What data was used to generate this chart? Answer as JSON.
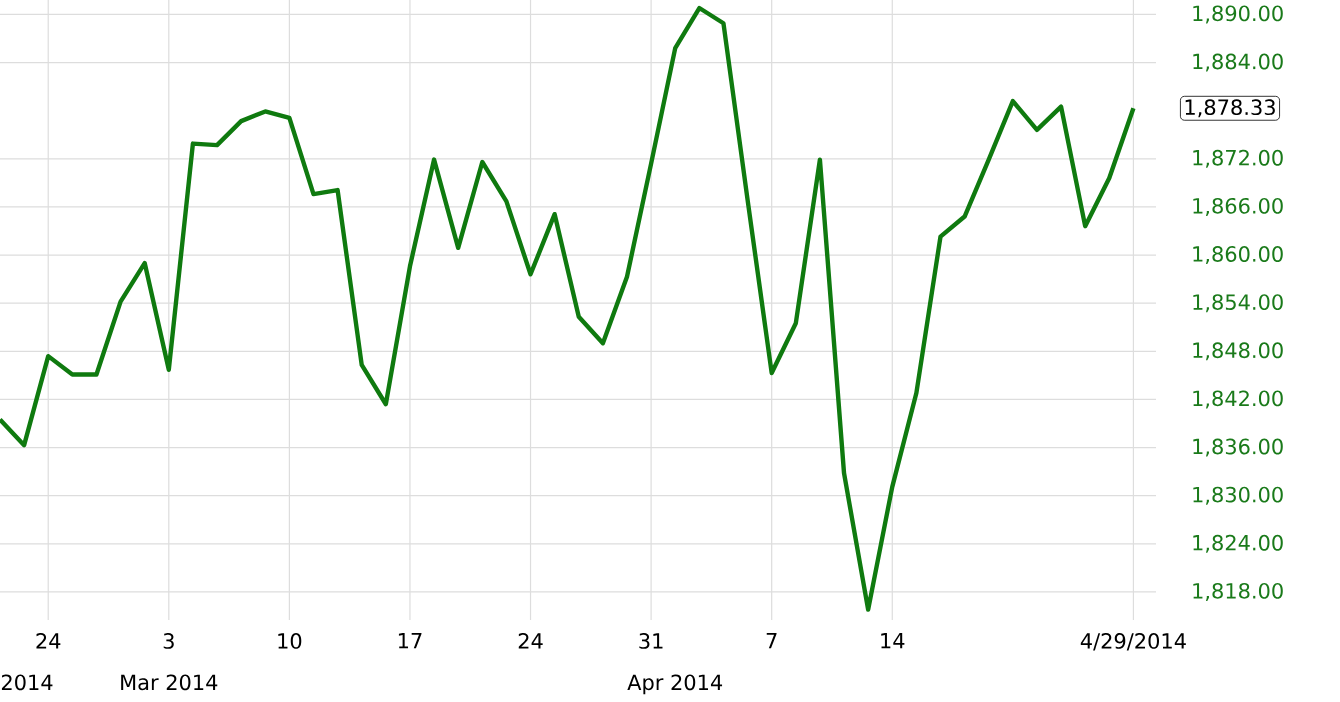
{
  "chart_data": {
    "type": "line",
    "categories": [
      null,
      null,
      "24",
      null,
      null,
      null,
      null,
      "3",
      null,
      null,
      null,
      null,
      "10",
      null,
      null,
      null,
      null,
      "17",
      null,
      null,
      null,
      null,
      "24",
      null,
      null,
      null,
      null,
      "31",
      null,
      null,
      null,
      null,
      "7",
      null,
      null,
      null,
      null,
      "14",
      null,
      null,
      null,
      null,
      null,
      null,
      null,
      null,
      null,
      "4/29/2014"
    ],
    "series": [
      {
        "color": "#0f7a0f",
        "values": [
          1839.5,
          1836.3,
          1847.4,
          1845.1,
          1845.1,
          1854.2,
          1859.0,
          1845.7,
          1873.9,
          1873.7,
          1876.7,
          1877.9,
          1877.1,
          1867.6,
          1868.1,
          1846.3,
          1841.4,
          1858.6,
          1871.9,
          1860.9,
          1871.6,
          1866.7,
          1857.6,
          1865.1,
          1852.3,
          1849.0,
          1857.3,
          1871.4,
          1885.8,
          1890.8,
          1888.9,
          1866.9,
          1845.3,
          1851.5,
          1871.9,
          1832.8,
          1815.8,
          1831.1,
          1842.8,
          1862.3,
          1864.8,
          1871.9,
          1879.2,
          1875.6,
          1878.5,
          1863.6,
          1869.6,
          1878.3
        ]
      }
    ],
    "ylim": [
      1814.5,
      1891.8
    ],
    "yticks": [
      {
        "value": 1890,
        "label": "1,890.00"
      },
      {
        "value": 1884,
        "label": "1,884.00"
      },
      {
        "value": 1872,
        "label": "1,872.00"
      },
      {
        "value": 1866,
        "label": "1,866.00"
      },
      {
        "value": 1860,
        "label": "1,860.00"
      },
      {
        "value": 1854,
        "label": "1,854.00"
      },
      {
        "value": 1848,
        "label": "1,848.00"
      },
      {
        "value": 1842,
        "label": "1,842.00"
      },
      {
        "value": 1836,
        "label": "1,836.00"
      },
      {
        "value": 1830,
        "label": "1,830.00"
      },
      {
        "value": 1824,
        "label": "1,824.00"
      },
      {
        "value": 1818,
        "label": "1,818.00"
      }
    ],
    "annotations": [
      "2014",
      "Mar 2014",
      "Apr 2014",
      "1,878.33"
    ],
    "grid": true,
    "marker": "none",
    "line_style": "solid"
  }
}
